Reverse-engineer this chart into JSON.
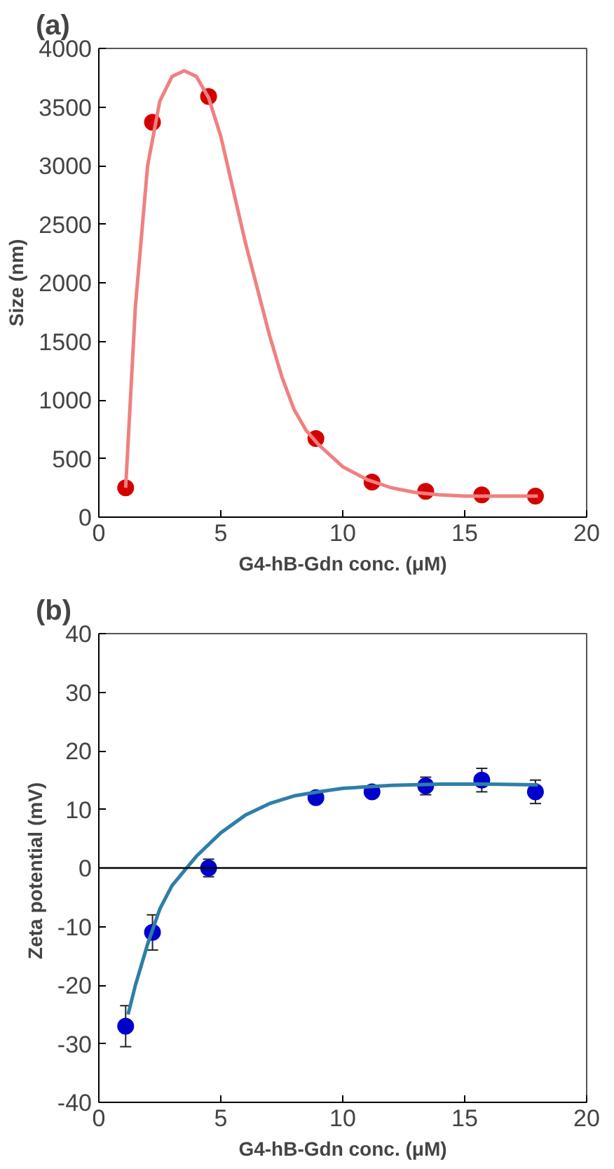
{
  "chart_data": [
    {
      "type": "scatter",
      "title": "(a)",
      "xlabel": "G4-hB-Gdn conc. (μM)",
      "ylabel": "Size (nm)",
      "xlim": [
        0,
        20
      ],
      "ylim": [
        0,
        4000
      ],
      "xticks": [
        0,
        5,
        10,
        15,
        20
      ],
      "yticks": [
        0,
        500,
        1000,
        1500,
        2000,
        2500,
        3000,
        3500,
        4000
      ],
      "grid": false,
      "series": [
        {
          "marker": "circle",
          "color": "#d40000",
          "x": [
            1.1,
            2.2,
            4.5,
            8.9,
            11.2,
            13.4,
            15.7,
            17.9
          ],
          "values": [
            250,
            3370,
            3590,
            670,
            300,
            220,
            190,
            180
          ]
        },
        {
          "type": "line",
          "line_style": "solid",
          "color": "#f08080",
          "x": [
            1.1,
            1.5,
            2,
            2.5,
            3,
            3.5,
            4,
            4.5,
            5,
            5.5,
            6,
            6.5,
            7,
            7.5,
            8,
            8.5,
            9,
            10,
            11,
            12,
            13,
            14,
            15,
            16,
            17,
            18
          ],
          "values": [
            250,
            1800,
            3000,
            3550,
            3760,
            3810,
            3760,
            3580,
            3250,
            2800,
            2350,
            1950,
            1550,
            1200,
            920,
            740,
            620,
            430,
            320,
            250,
            210,
            190,
            180,
            180,
            180,
            180
          ]
        }
      ]
    },
    {
      "type": "scatter",
      "title": "(b)",
      "xlabel": "G4-hB-Gdn conc. (μM)",
      "ylabel": "Zeta potential  (mV)",
      "xlim": [
        0,
        20
      ],
      "ylim": [
        -40,
        40
      ],
      "xticks": [
        0,
        5,
        10,
        15,
        20
      ],
      "yticks": [
        -40,
        -30,
        -20,
        -10,
        0,
        10,
        20,
        30,
        40
      ],
      "grid": false,
      "ref_lines": [
        {
          "axis": "y",
          "value": 0,
          "color": "#000000",
          "line_style": "solid"
        }
      ],
      "series": [
        {
          "marker": "circle",
          "color": "#0000cc",
          "x": [
            1.1,
            2.2,
            4.5,
            8.9,
            11.2,
            13.4,
            15.7,
            17.9
          ],
          "values": [
            -27,
            -11,
            0,
            12,
            13,
            14,
            15,
            13
          ],
          "errors": [
            3.5,
            3,
            1.5,
            null,
            null,
            1.5,
            2,
            2
          ]
        },
        {
          "type": "line",
          "line_style": "solid",
          "color": "#2e7ea8",
          "x": [
            1.2,
            1.5,
            2,
            2.5,
            3,
            3.5,
            4,
            5,
            6,
            7,
            8,
            9,
            10,
            12,
            14,
            16,
            18
          ],
          "values": [
            -25,
            -20,
            -13,
            -7,
            -3,
            -0.5,
            2,
            6,
            9,
            11,
            12.3,
            13,
            13.6,
            14.1,
            14.3,
            14.3,
            14.2
          ]
        }
      ]
    }
  ]
}
